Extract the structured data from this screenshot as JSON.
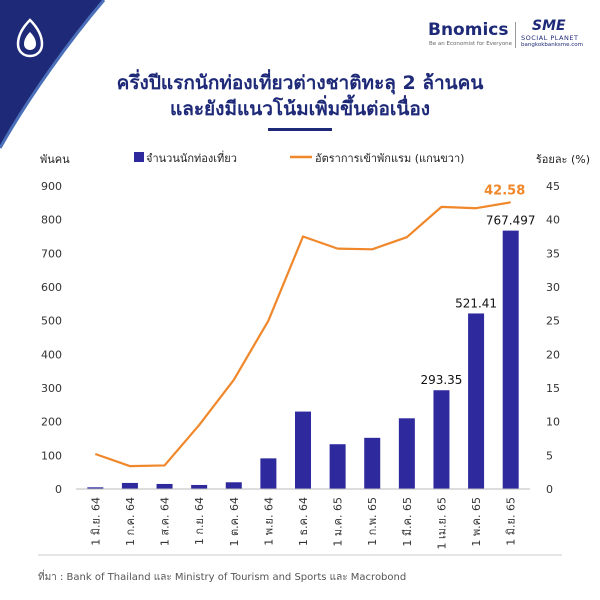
{
  "header": {
    "brand_name": "Bnomics",
    "brand_tagline": "Be an Economist for Everyone",
    "partner_name": "SME",
    "partner_sub": "SOCIAL PLANET",
    "partner_url": "bangkokbanksme.com",
    "title_line1": "ครึ่งปีแรกนักท่องเที่ยวต่างชาติทะลุ 2 ล้านคน",
    "title_line2": "และยังมีแนวโน้มเพิ่มขึ้นต่อเนื่อง"
  },
  "source": "ที่มา : Bank of Thailand และ Ministry of Tourism and Sports และ Macrobond",
  "colors": {
    "bar": "#2e2a9e",
    "line": "#f0872a",
    "title": "#1e2a78",
    "corner": "#1e2a78"
  },
  "chart_data": {
    "type": "bar",
    "title": "ครึ่งปีแรกนักท่องเที่ยวต่างชาติทะลุ 2 ล้านคน และยังมีแนวโน้มเพิ่มขึ้นต่อเนื่อง",
    "ylabel": "พันคน",
    "y2label": "ร้อยละ (%)",
    "ylim": [
      0,
      900
    ],
    "y2lim": [
      0,
      45
    ],
    "yticks": [
      "0",
      "100",
      "200",
      "300",
      "400",
      "500",
      "600",
      "700",
      "800",
      "900"
    ],
    "y2ticks": [
      "0",
      "5",
      "10",
      "15",
      "20",
      "25",
      "30",
      "35",
      "40",
      "45"
    ],
    "categories": [
      "1 มิ.ย. 64",
      "1 ก.ค. 64",
      "1 ส.ค. 64",
      "1 ก.ย. 64",
      "1 ต.ค. 64",
      "1 พ.ย. 64",
      "1 ธ.ค. 64",
      "1 ม.ค. 65",
      "1 ก.พ. 65",
      "1 มี.ค. 65",
      "1 เม.ย. 65",
      "1 พ.ค. 65",
      "1 มิ.ย. 65"
    ],
    "series": [
      {
        "name": "จำนวนนักท่องเที่ยว",
        "type": "bar",
        "axis": "left",
        "values": [
          5,
          18,
          15,
          12,
          20,
          91,
          230,
          133,
          152,
          210,
          293.35,
          521.41,
          767.497
        ],
        "labels": [
          "",
          "",
          "",
          "",
          "",
          "",
          "",
          "",
          "",
          "",
          "293.35",
          "521.41",
          "767.497"
        ]
      },
      {
        "name": "อัตราการเข้าพักแรม (แกนขวา)",
        "type": "line",
        "axis": "right",
        "values": [
          5.2,
          3.4,
          3.5,
          9.5,
          16.2,
          25,
          37.5,
          35.7,
          35.6,
          37.4,
          41.9,
          41.7,
          42.58
        ],
        "labels": [
          "",
          "",
          "",
          "",
          "",
          "",
          "",
          "",
          "",
          "",
          "",
          "",
          "42.58"
        ]
      }
    ],
    "legend_position": "top",
    "grid": false
  }
}
